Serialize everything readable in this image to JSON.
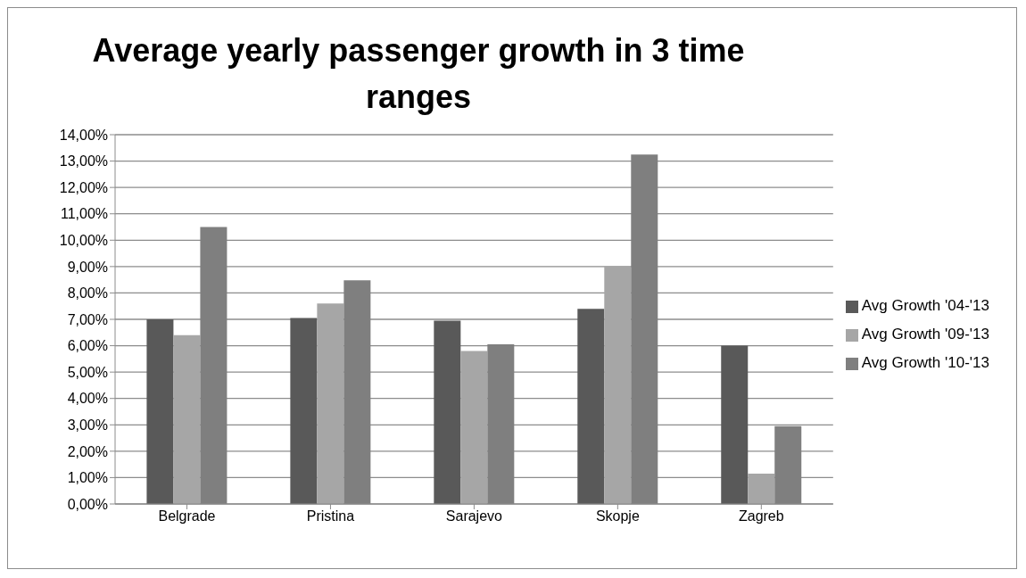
{
  "chart_data": {
    "type": "bar",
    "title": "Average yearly passenger growth in 3 time ranges",
    "categories": [
      "Belgrade",
      "Pristina",
      "Sarajevo",
      "Skopje",
      "Zagreb"
    ],
    "series": [
      {
        "name": "Avg Growth '04-'13",
        "color": "#595959",
        "values": [
          7.0,
          7.05,
          6.95,
          7.4,
          6.0
        ]
      },
      {
        "name": "Avg Growth '09-'13",
        "color": "#a6a6a6",
        "values": [
          6.4,
          7.6,
          5.8,
          9.0,
          1.15
        ]
      },
      {
        "name": "Avg Growth '10-'13",
        "color": "#7f7f7f",
        "values": [
          10.5,
          8.48,
          6.05,
          13.25,
          2.95
        ]
      }
    ],
    "ylim": [
      0,
      14
    ],
    "yticks": [
      {
        "value": 0,
        "label": "0,00%"
      },
      {
        "value": 1,
        "label": "1,00%"
      },
      {
        "value": 2,
        "label": "2,00%"
      },
      {
        "value": 3,
        "label": "3,00%"
      },
      {
        "value": 4,
        "label": "4,00%"
      },
      {
        "value": 5,
        "label": "5,00%"
      },
      {
        "value": 6,
        "label": "6,00%"
      },
      {
        "value": 7,
        "label": "7,00%"
      },
      {
        "value": 8,
        "label": "8,00%"
      },
      {
        "value": 9,
        "label": "9,00%"
      },
      {
        "value": 10,
        "label": "10,00%"
      },
      {
        "value": 11,
        "label": "11,00%"
      },
      {
        "value": 12,
        "label": "12,00%"
      },
      {
        "value": 13,
        "label": "13,00%"
      },
      {
        "value": 14,
        "label": "14,00%"
      }
    ],
    "grid": "y",
    "legend": "right"
  }
}
